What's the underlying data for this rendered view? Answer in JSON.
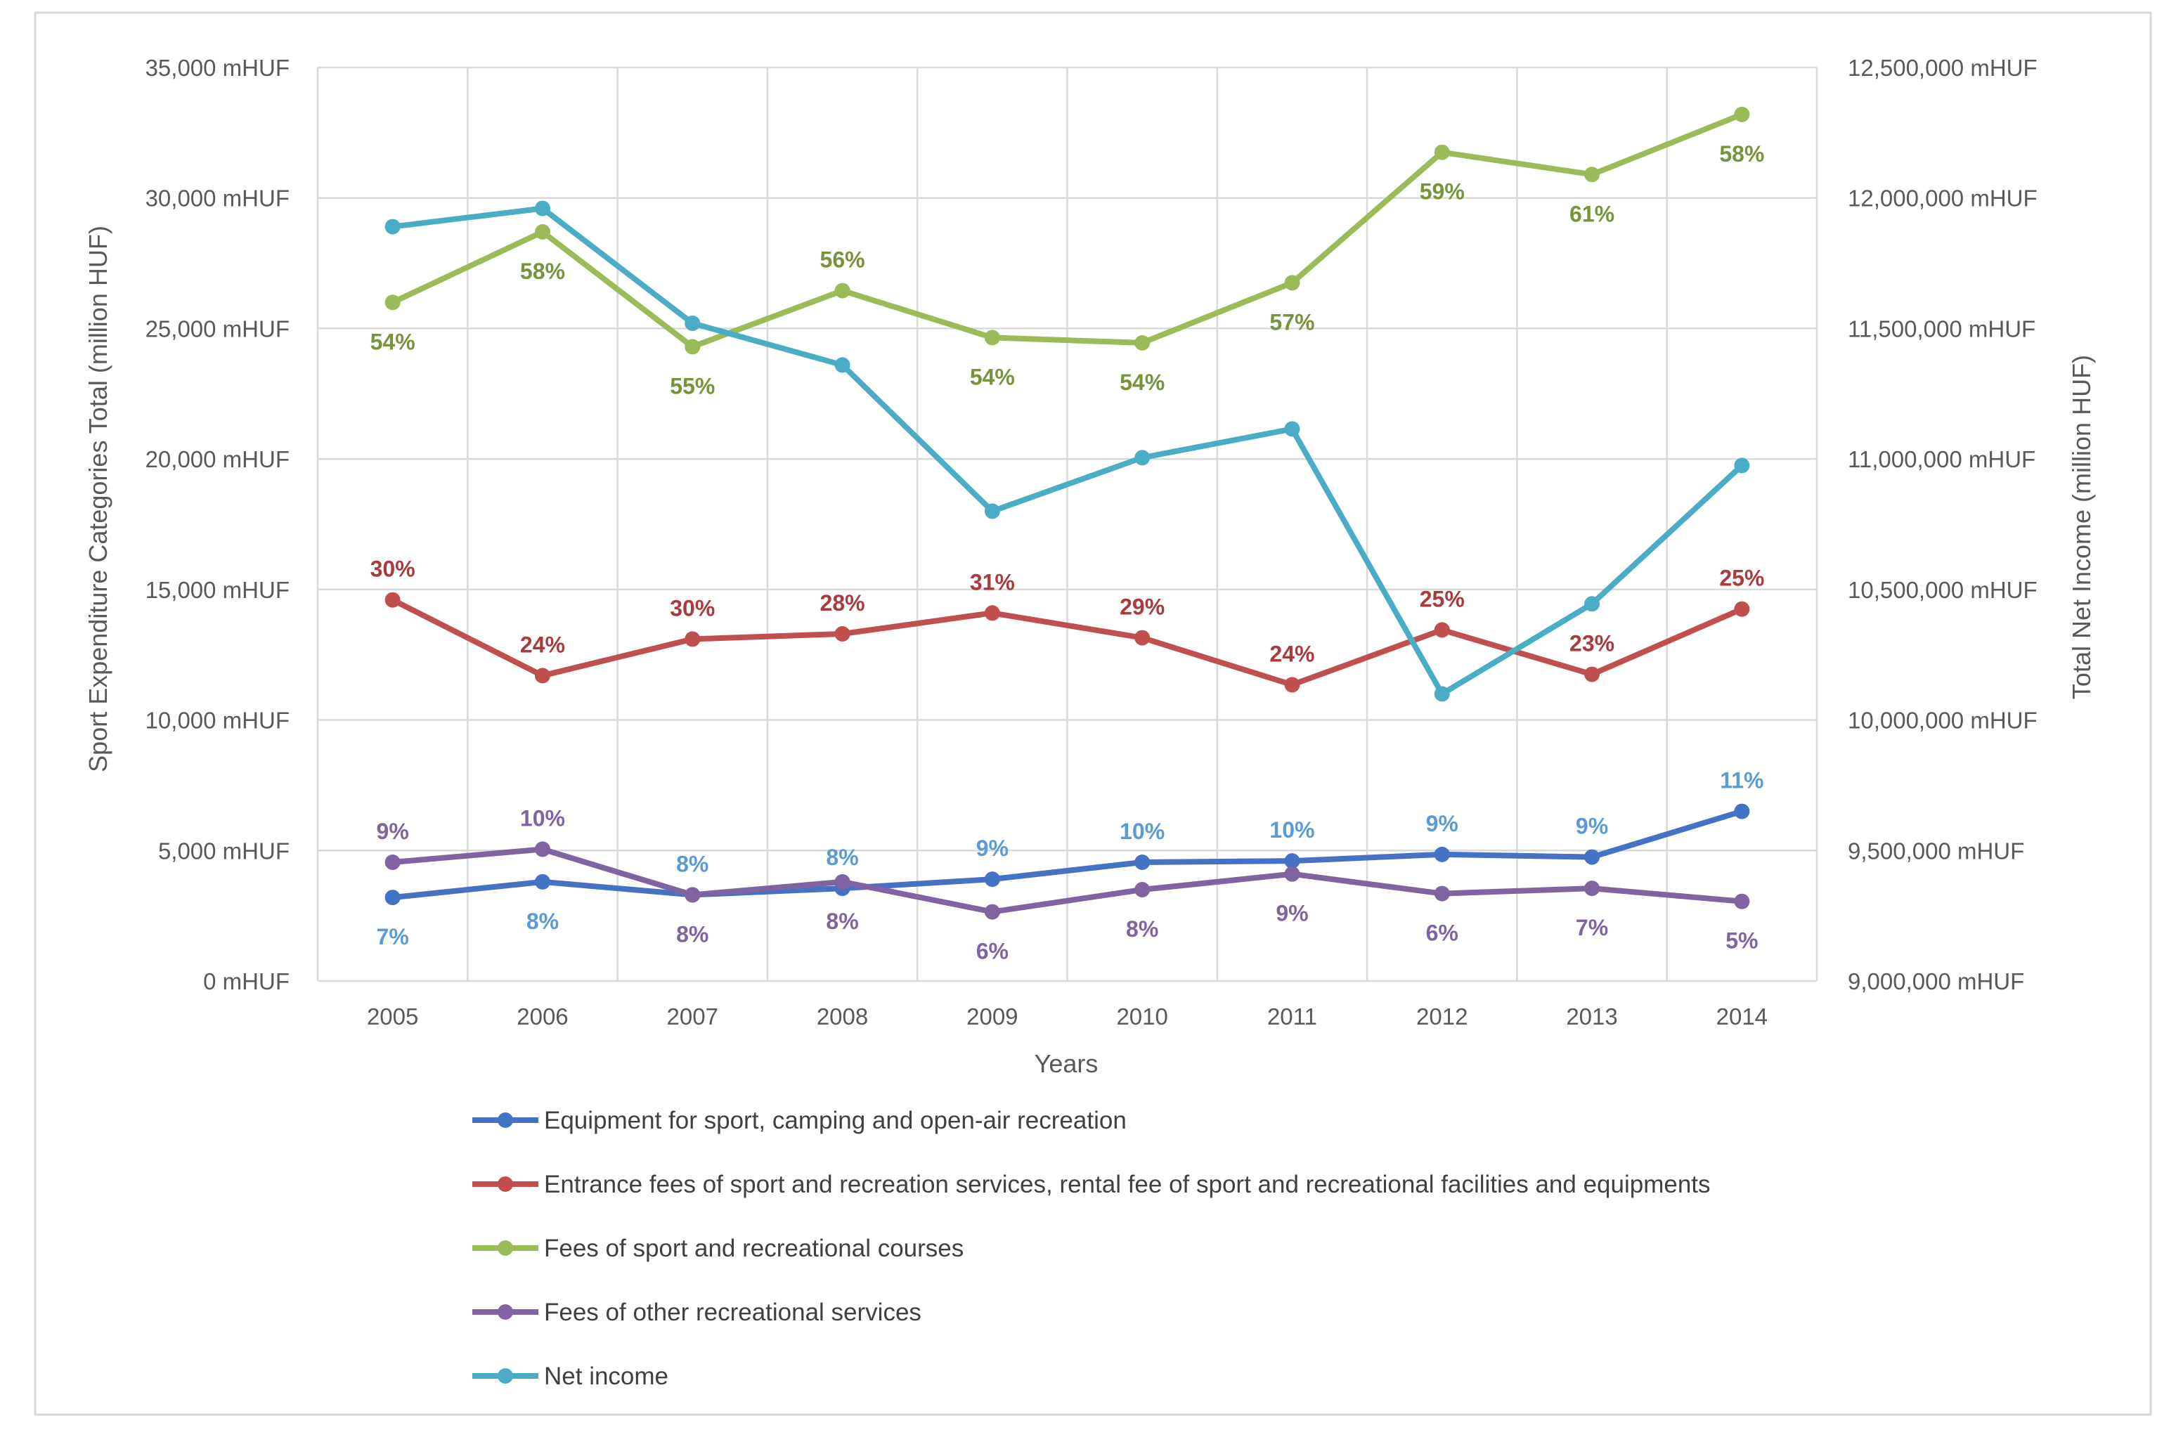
{
  "chart_data": {
    "type": "line",
    "categories": [
      "2005",
      "2006",
      "2007",
      "2008",
      "2009",
      "2010",
      "2011",
      "2012",
      "2013",
      "2014"
    ],
    "xlabel": "Years",
    "ylabel": "Sport Expenditure Categories Total (million HUF)",
    "y2label": "Total Net Income (million HUF)",
    "ylim": [
      0,
      35000
    ],
    "y2lim": [
      9000000,
      12500000
    ],
    "yticks": [
      "0 mHUF",
      "5,000 mHUF",
      "10,000 mHUF",
      "15,000 mHUF",
      "20,000 mHUF",
      "25,000 mHUF",
      "30,000 mHUF",
      "35,000 mHUF"
    ],
    "y2ticks": [
      "9,000,000 mHUF",
      "9,500,000 mHUF",
      "10,000,000 mHUF",
      "10,500,000 mHUF",
      "11,000,000 mHUF",
      "11,500,000 mHUF",
      "12,000,000 mHUF",
      "12,500,000 mHUF"
    ],
    "grid": true,
    "legend_position": "bottom",
    "series": [
      {
        "name": "Equipment for sport, camping and open-air recreation",
        "color": "#4472C4",
        "label_color": "#5B9BD5",
        "axis": "left",
        "values": [
          3200,
          3800,
          3300,
          3550,
          3900,
          4550,
          4600,
          4850,
          4750,
          6500
        ],
        "labels": [
          "7%",
          "8%",
          "8%",
          "8%",
          "9%",
          "10%",
          "10%",
          "9%",
          "9%",
          "11%"
        ],
        "label_pos": [
          "below",
          "below",
          "above",
          "above",
          "above",
          "above",
          "above",
          "above",
          "above",
          "above"
        ]
      },
      {
        "name": "Entrance fees of sport and recreation services, rental fee of sport and recreational facilities and equipments",
        "color": "#C0504D",
        "label_color": "#A83C3C",
        "axis": "left",
        "values": [
          14600,
          11700,
          13100,
          13300,
          14100,
          13150,
          11350,
          13450,
          11750,
          14250
        ],
        "labels": [
          "30%",
          "24%",
          "30%",
          "28%",
          "31%",
          "29%",
          "24%",
          "25%",
          "23%",
          "25%"
        ],
        "label_pos": [
          "above",
          "above",
          "above",
          "above",
          "above",
          "above",
          "above",
          "above",
          "above",
          "above"
        ]
      },
      {
        "name": "Fees of sport and recreational courses",
        "color": "#9BBB59",
        "label_color": "#77933C",
        "axis": "left",
        "values": [
          26000,
          28700,
          24300,
          26450,
          24650,
          24450,
          26750,
          31750,
          30900,
          33200
        ],
        "labels": [
          "54%",
          "58%",
          "55%",
          "56%",
          "54%",
          "54%",
          "57%",
          "59%",
          "61%",
          "58%"
        ],
        "label_pos": [
          "below",
          "below",
          "below",
          "above",
          "below",
          "below",
          "below",
          "below",
          "below",
          "below"
        ]
      },
      {
        "name": "Fees of other recreational services",
        "color": "#8064A2",
        "label_color": "#8064A2",
        "axis": "left",
        "values": [
          4550,
          5050,
          3300,
          3800,
          2650,
          3500,
          4100,
          3350,
          3550,
          3050
        ],
        "labels": [
          "9%",
          "10%",
          "8%",
          "8%",
          "6%",
          "8%",
          "9%",
          "6%",
          "7%",
          "5%"
        ],
        "label_pos": [
          "above",
          "above",
          "below",
          "below",
          "below",
          "below",
          "below",
          "below",
          "below",
          "below"
        ]
      },
      {
        "name": "Net income",
        "color": "#4BACC6",
        "axis": "right",
        "values": [
          11890000,
          11960000,
          11520000,
          11360000,
          10800000,
          11005000,
          11115000,
          10100000,
          10445000,
          10975000
        ]
      }
    ]
  }
}
